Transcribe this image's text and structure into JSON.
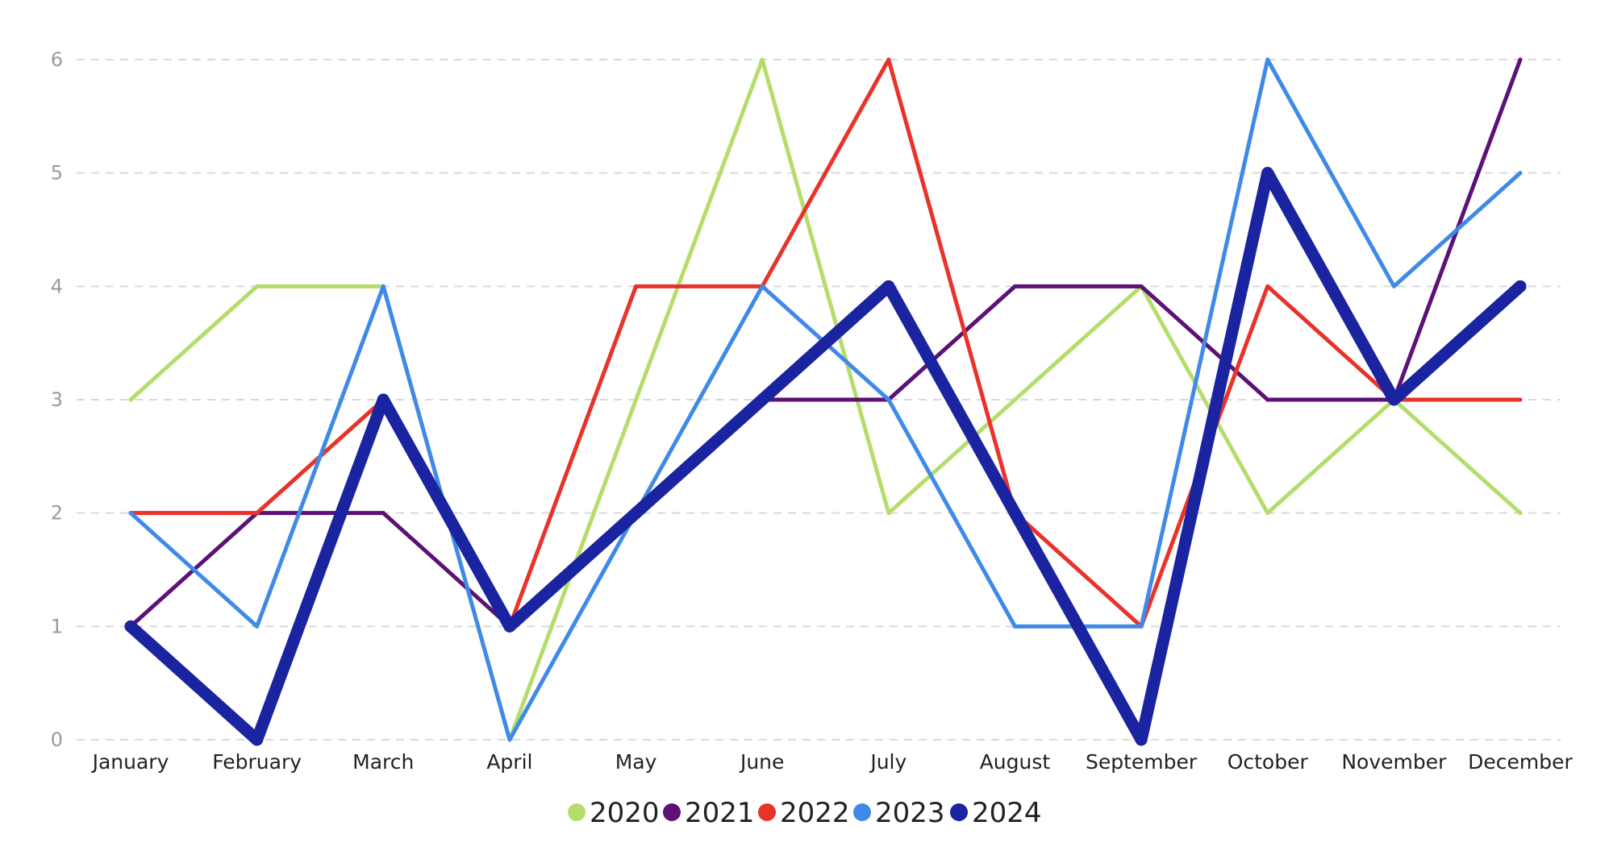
{
  "chart_data": {
    "type": "line",
    "title": "",
    "xlabel": "",
    "ylabel": "",
    "ylim": [
      0,
      6
    ],
    "yticks": [
      0,
      1,
      2,
      3,
      4,
      5,
      6
    ],
    "grid": "horizontal-dashed",
    "legend_position": "bottom-center",
    "categories": [
      "January",
      "February",
      "March",
      "April",
      "May",
      "June",
      "July",
      "August",
      "September",
      "October",
      "November",
      "December"
    ],
    "series": [
      {
        "name": "2020",
        "color": "#b5dd6b",
        "values": [
          3,
          4,
          4,
          0,
          3,
          6,
          2,
          3,
          4,
          2,
          3,
          2
        ]
      },
      {
        "name": "2021",
        "color": "#5c1176",
        "values": [
          1,
          2,
          2,
          1,
          2,
          3,
          3,
          4,
          4,
          3,
          3,
          6
        ]
      },
      {
        "name": "2022",
        "color": "#e8332a",
        "values": [
          2,
          2,
          3,
          1,
          4,
          4,
          6,
          2,
          1,
          4,
          3,
          3
        ]
      },
      {
        "name": "2023",
        "color": "#3f8ae8",
        "values": [
          2,
          1,
          4,
          0,
          2,
          4,
          3,
          1,
          1,
          6,
          4,
          5
        ]
      },
      {
        "name": "2024",
        "color": "#1a23a0",
        "values": [
          1,
          0,
          3,
          1,
          2,
          3,
          4,
          2,
          0,
          5,
          3,
          4
        ],
        "emphasis": true
      }
    ]
  }
}
